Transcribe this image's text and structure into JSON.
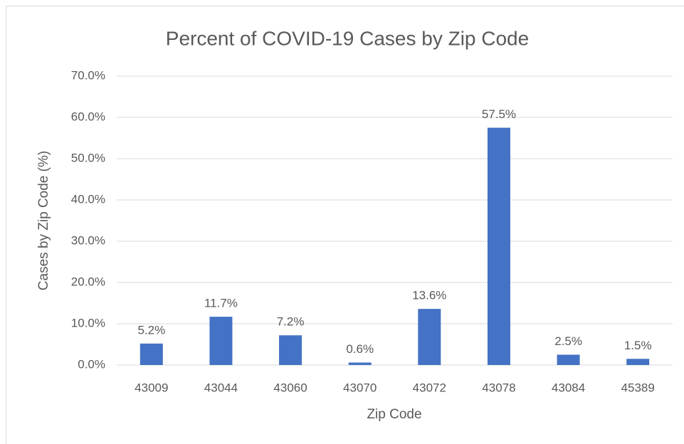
{
  "chart_data": {
    "type": "bar",
    "title": "Percent of COVID-19 Cases by Zip Code",
    "x_label": "Zip Code",
    "y_label": "Cases by Zip Code (%)",
    "categories": [
      "43009",
      "43044",
      "43060",
      "43070",
      "43072",
      "43078",
      "43084",
      "45389"
    ],
    "values": [
      5.2,
      11.7,
      7.2,
      0.6,
      13.6,
      57.5,
      2.5,
      1.5
    ],
    "value_labels": [
      "5.2%",
      "11.7%",
      "7.2%",
      "0.6%",
      "13.6%",
      "57.5%",
      "2.5%",
      "1.5%"
    ],
    "color": "#4472c4",
    "ylim": [
      0,
      70
    ],
    "yticks": [
      {
        "value": 0,
        "label": "0.0%"
      },
      {
        "value": 10,
        "label": "10.0%"
      },
      {
        "value": 20,
        "label": "20.0%"
      },
      {
        "value": 30,
        "label": "30.0%"
      },
      {
        "value": 40,
        "label": "40.0%"
      },
      {
        "value": 50,
        "label": "50.0%"
      },
      {
        "value": 60,
        "label": "60.0%"
      },
      {
        "value": 70,
        "label": "70.0%"
      }
    ],
    "grid": true
  }
}
